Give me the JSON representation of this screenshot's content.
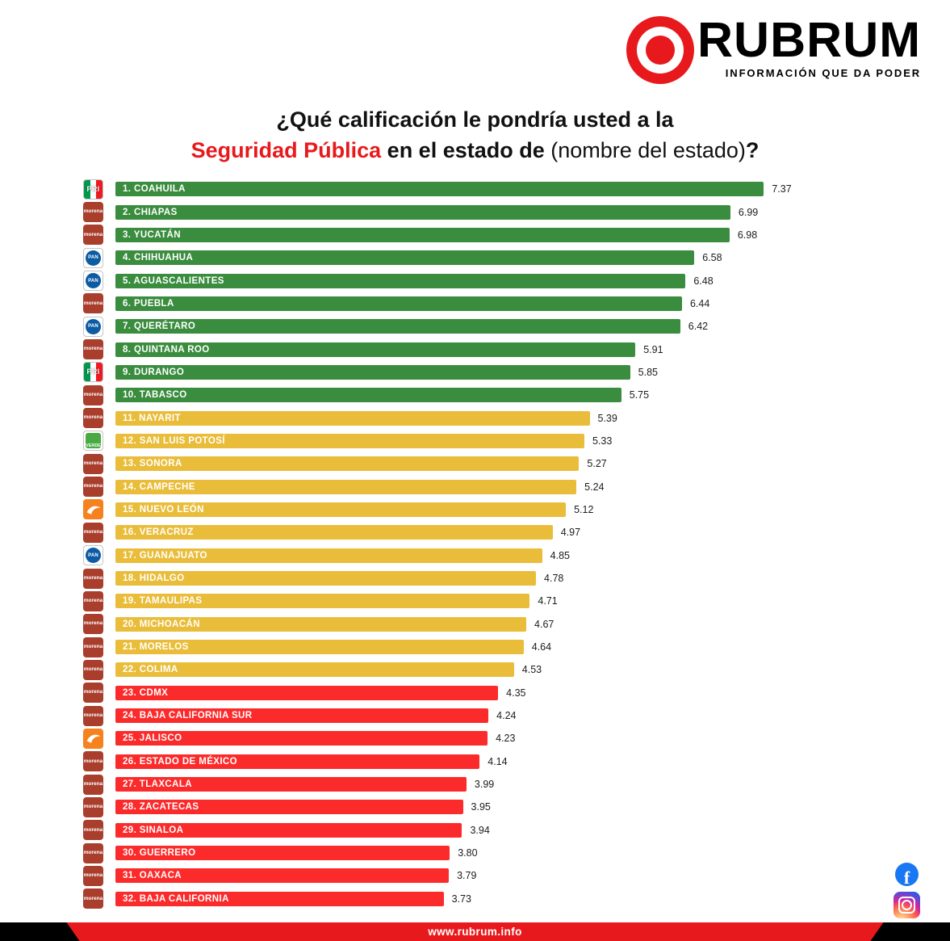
{
  "brand": {
    "name": "RUBRUM",
    "tagline": "INFORMACIÓN QUE DA PODER",
    "accent_color": "#e8191c"
  },
  "title": {
    "line1": "¿Qué calificación le pondría usted a la",
    "highlight": "Seguridad Pública",
    "bold_text": " en el estado de ",
    "light_text": "(nombre del estado)",
    "question_mark": "?"
  },
  "footer": {
    "url": "www.rubrum.info"
  },
  "social": {
    "icons": [
      "facebook",
      "instagram"
    ]
  },
  "chart_data": {
    "type": "bar",
    "orientation": "horizontal",
    "value_range": [
      0,
      7.5
    ],
    "grid": false,
    "legend": false,
    "tier_colors": {
      "high": "#3a8c3e",
      "mid": "#e9bd3a",
      "low": "#fc2b2b"
    },
    "rows": [
      {
        "rank": 1,
        "state": "COAHUILA",
        "value": 7.37,
        "tier": "high",
        "party": "PRI"
      },
      {
        "rank": 2,
        "state": "CHIAPAS",
        "value": 6.99,
        "tier": "high",
        "party": "MORENA"
      },
      {
        "rank": 3,
        "state": "YUCATÁN",
        "value": 6.98,
        "tier": "high",
        "party": "MORENA"
      },
      {
        "rank": 4,
        "state": "CHIHUAHUA",
        "value": 6.58,
        "tier": "high",
        "party": "PAN"
      },
      {
        "rank": 5,
        "state": "AGUASCALIENTES",
        "value": 6.48,
        "tier": "high",
        "party": "PAN"
      },
      {
        "rank": 6,
        "state": "PUEBLA",
        "value": 6.44,
        "tier": "high",
        "party": "MORENA"
      },
      {
        "rank": 7,
        "state": "QUERÉTARO",
        "value": 6.42,
        "tier": "high",
        "party": "PAN"
      },
      {
        "rank": 8,
        "state": "QUINTANA ROO",
        "value": 5.91,
        "tier": "high",
        "party": "MORENA"
      },
      {
        "rank": 9,
        "state": "DURANGO",
        "value": 5.85,
        "tier": "high",
        "party": "PRI"
      },
      {
        "rank": 10,
        "state": "TABASCO",
        "value": 5.75,
        "tier": "high",
        "party": "MORENA"
      },
      {
        "rank": 11,
        "state": "NAYARIT",
        "value": 5.39,
        "tier": "mid",
        "party": "MORENA"
      },
      {
        "rank": 12,
        "state": "SAN LUIS POTOSÍ",
        "value": 5.33,
        "tier": "mid",
        "party": "VERDE"
      },
      {
        "rank": 13,
        "state": "SONORA",
        "value": 5.27,
        "tier": "mid",
        "party": "MORENA"
      },
      {
        "rank": 14,
        "state": "CAMPECHE",
        "value": 5.24,
        "tier": "mid",
        "party": "MORENA"
      },
      {
        "rank": 15,
        "state": "NUEVO LEÓN",
        "value": 5.12,
        "tier": "mid",
        "party": "MC"
      },
      {
        "rank": 16,
        "state": "VERACRUZ",
        "value": 4.97,
        "tier": "mid",
        "party": "MORENA"
      },
      {
        "rank": 17,
        "state": "GUANAJUATO",
        "value": 4.85,
        "tier": "mid",
        "party": "PAN"
      },
      {
        "rank": 18,
        "state": "HIDALGO",
        "value": 4.78,
        "tier": "mid",
        "party": "MORENA"
      },
      {
        "rank": 19,
        "state": "TAMAULIPAS",
        "value": 4.71,
        "tier": "mid",
        "party": "MORENA"
      },
      {
        "rank": 20,
        "state": "MICHOACÁN",
        "value": 4.67,
        "tier": "mid",
        "party": "MORENA"
      },
      {
        "rank": 21,
        "state": "MORELOS",
        "value": 4.64,
        "tier": "mid",
        "party": "MORENA"
      },
      {
        "rank": 22,
        "state": "COLIMA",
        "value": 4.53,
        "tier": "mid",
        "party": "MORENA"
      },
      {
        "rank": 23,
        "state": "CDMX",
        "value": 4.35,
        "tier": "low",
        "party": "MORENA"
      },
      {
        "rank": 24,
        "state": "BAJA CALIFORNIA SUR",
        "value": 4.24,
        "tier": "low",
        "party": "MORENA"
      },
      {
        "rank": 25,
        "state": "JALISCO",
        "value": 4.23,
        "tier": "low",
        "party": "MC"
      },
      {
        "rank": 26,
        "state": "ESTADO DE MÉXICO",
        "value": 4.14,
        "tier": "low",
        "party": "MORENA"
      },
      {
        "rank": 27,
        "state": "TLAXCALA",
        "value": 3.99,
        "tier": "low",
        "party": "MORENA"
      },
      {
        "rank": 28,
        "state": "ZACATECAS",
        "value": 3.95,
        "tier": "low",
        "party": "MORENA"
      },
      {
        "rank": 29,
        "state": "SINALOA",
        "value": 3.94,
        "tier": "low",
        "party": "MORENA"
      },
      {
        "rank": 30,
        "state": "GUERRERO",
        "value": 3.8,
        "tier": "low",
        "party": "MORENA"
      },
      {
        "rank": 31,
        "state": "OAXACA",
        "value": 3.79,
        "tier": "low",
        "party": "MORENA"
      },
      {
        "rank": 32,
        "state": "BAJA CALIFORNIA",
        "value": 3.73,
        "tier": "low",
        "party": "MORENA"
      }
    ]
  }
}
